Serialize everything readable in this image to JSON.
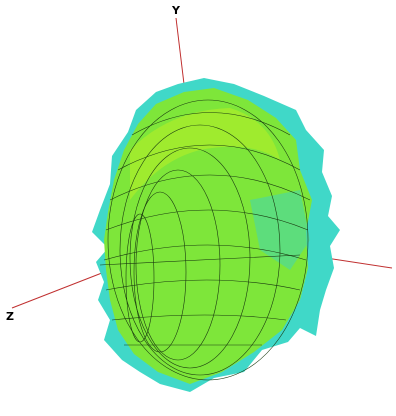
{
  "axes": {
    "y_label": "Y",
    "z_label": "Z"
  }
}
